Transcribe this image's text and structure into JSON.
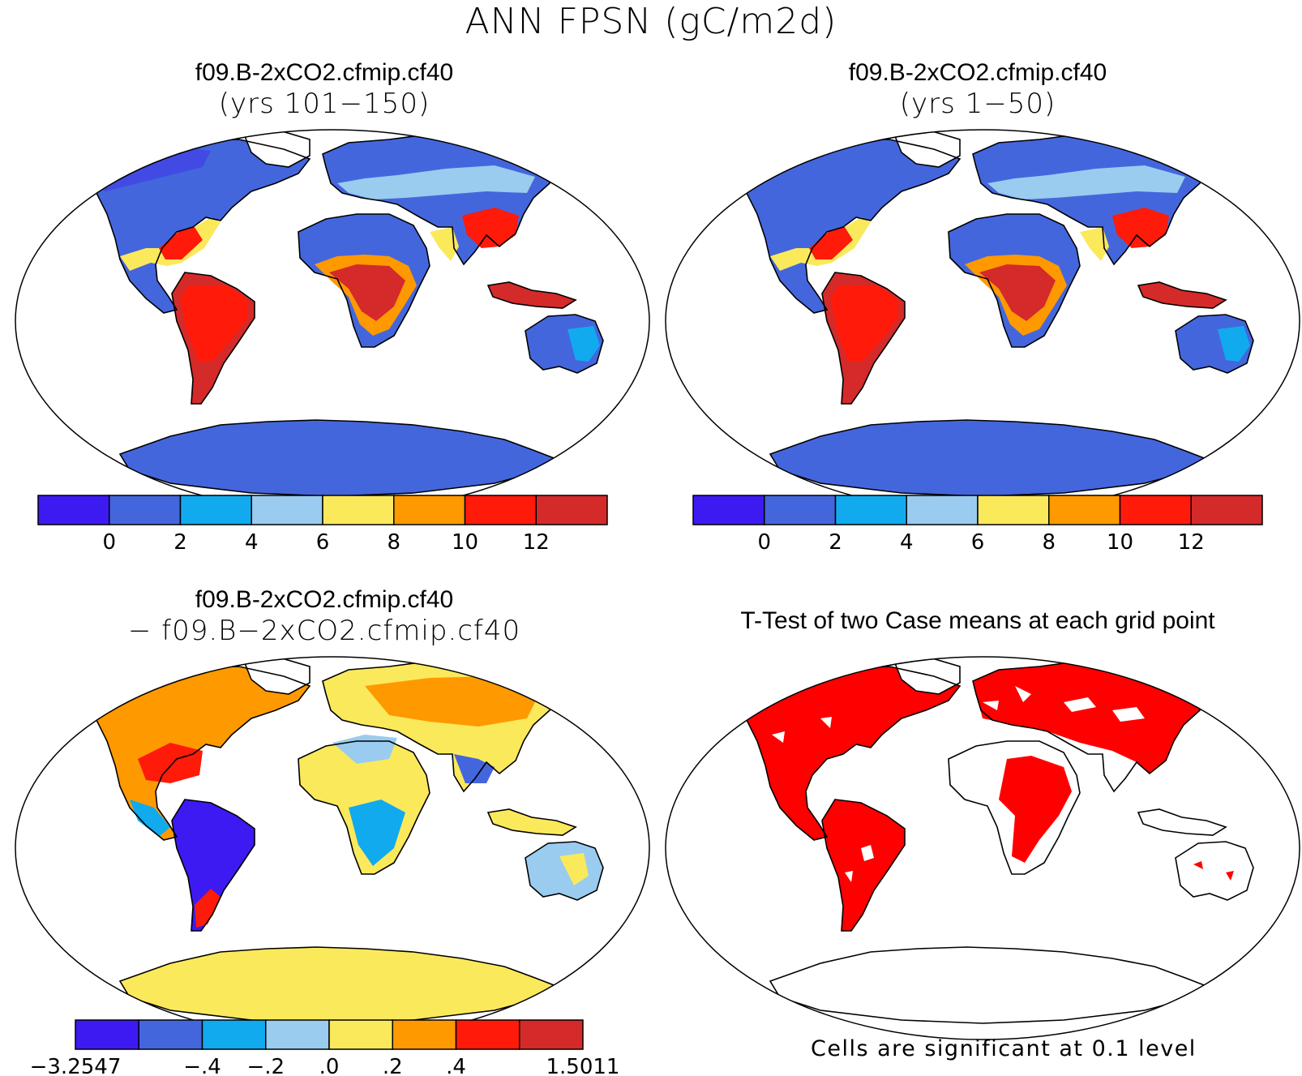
{
  "title": "ANN FPSN (gC/m2d)",
  "panels": {
    "tl": {
      "title": "f09.B-2xCO2.cfmip.cf40",
      "subtitle": "(yrs 101−150)"
    },
    "tr": {
      "title": "f09.B-2xCO2.cfmip.cf40",
      "subtitle": "(yrs 1−50)"
    },
    "bl": {
      "title": "f09.B-2xCO2.cfmip.cf40",
      "subtitle": "− f09.B−2xCO2.cfmip.cf40"
    },
    "br": {
      "title": "T-Test of two Case means at each grid point"
    }
  },
  "colorbar_abs": {
    "colors": [
      "#3d1af2",
      "#4466dd",
      "#11aaee",
      "#99ccee",
      "#fbe95c",
      "#ff9900",
      "#ff1a0a",
      "#d42a2a"
    ],
    "labels": [
      "0",
      "2",
      "4",
      "6",
      "8",
      "10",
      "12"
    ]
  },
  "colorbar_diff": {
    "colors": [
      "#3d1af2",
      "#4466dd",
      "#11aaee",
      "#99ccee",
      "#fbe95c",
      "#ff9900",
      "#ff1a0a",
      "#d42a2a"
    ],
    "labels": [
      "−3.2547",
      "−.4",
      "−.2",
      ".0",
      ".2",
      ".4",
      "1.5011"
    ]
  },
  "significance_note": "Cells are significant at 0.1 level",
  "significance_color": "#ff0000"
}
